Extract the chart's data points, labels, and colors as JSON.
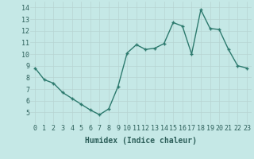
{
  "x": [
    0,
    1,
    2,
    3,
    4,
    5,
    6,
    7,
    8,
    9,
    10,
    11,
    12,
    13,
    14,
    15,
    16,
    17,
    18,
    19,
    20,
    21,
    22,
    23
  ],
  "y": [
    8.8,
    7.8,
    7.5,
    6.7,
    6.2,
    5.7,
    5.2,
    4.8,
    5.3,
    7.2,
    10.1,
    10.8,
    10.4,
    10.5,
    10.9,
    12.7,
    12.4,
    10.0,
    13.8,
    12.2,
    12.1,
    10.4,
    9.0,
    8.8
  ],
  "xlabel": "Humidex (Indice chaleur)",
  "ylim": [
    4,
    14.5
  ],
  "xlim": [
    -0.5,
    23.5
  ],
  "yticks": [
    5,
    6,
    7,
    8,
    9,
    10,
    11,
    12,
    13,
    14
  ],
  "xticks": [
    0,
    1,
    2,
    3,
    4,
    5,
    6,
    7,
    8,
    9,
    10,
    11,
    12,
    13,
    14,
    15,
    16,
    17,
    18,
    19,
    20,
    21,
    22,
    23
  ],
  "line_color": "#2d7a6e",
  "marker_color": "#2d7a6e",
  "bg_color": "#c5e8e6",
  "grid_color": "#b8d4d2",
  "xlabel_color": "#2d5f5a",
  "tick_color": "#2d5f5a",
  "font_size": 6.0,
  "xlabel_fontsize": 7.0,
  "linewidth": 1.0,
  "markersize": 3.0
}
